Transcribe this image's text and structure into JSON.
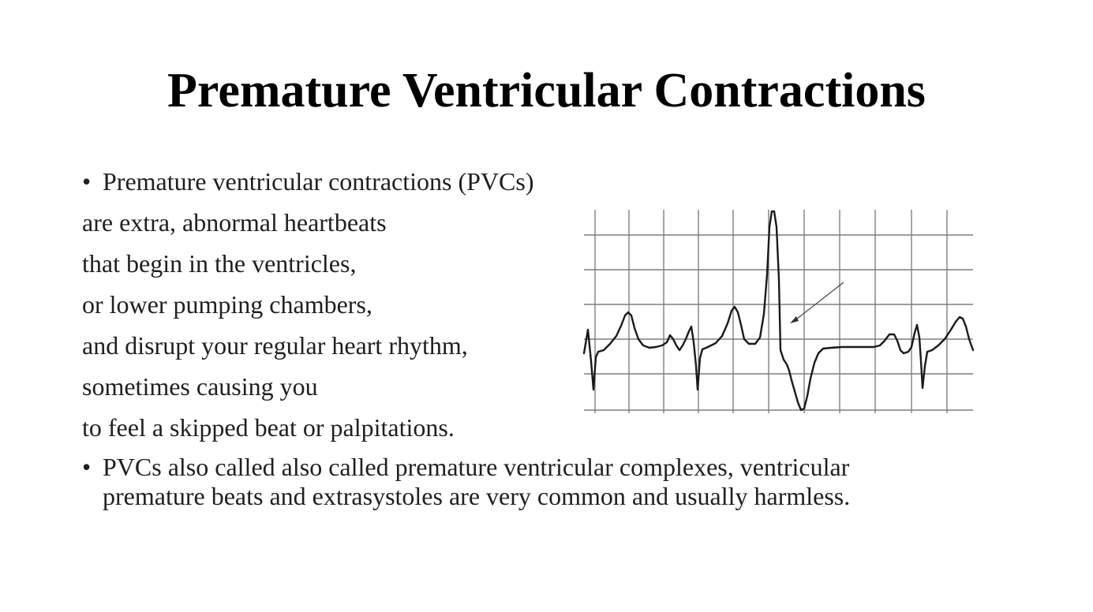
{
  "slide": {
    "title": "Premature Ventricular Contractions",
    "bullets": [
      {
        "bullet": "•",
        "lines": [
          "Premature ventricular contractions (PVCs)",
          "are extra, abnormal heartbeats",
          "that begin in the ventricles,",
          "or lower pumping chambers,",
          "and disrupt your regular heart rhythm,",
          "sometimes causing you",
          "to feel a skipped beat or palpitations."
        ]
      },
      {
        "bullet": "•",
        "text": "PVCs also called also called premature ventricular complexes, ventricular premature beats and extrasystoles are very common and usually harmless."
      }
    ]
  },
  "ecg_image": {
    "description_icon": "ecg-strip",
    "trace_color": "#1a1a1a",
    "grid_color": "#555555"
  }
}
